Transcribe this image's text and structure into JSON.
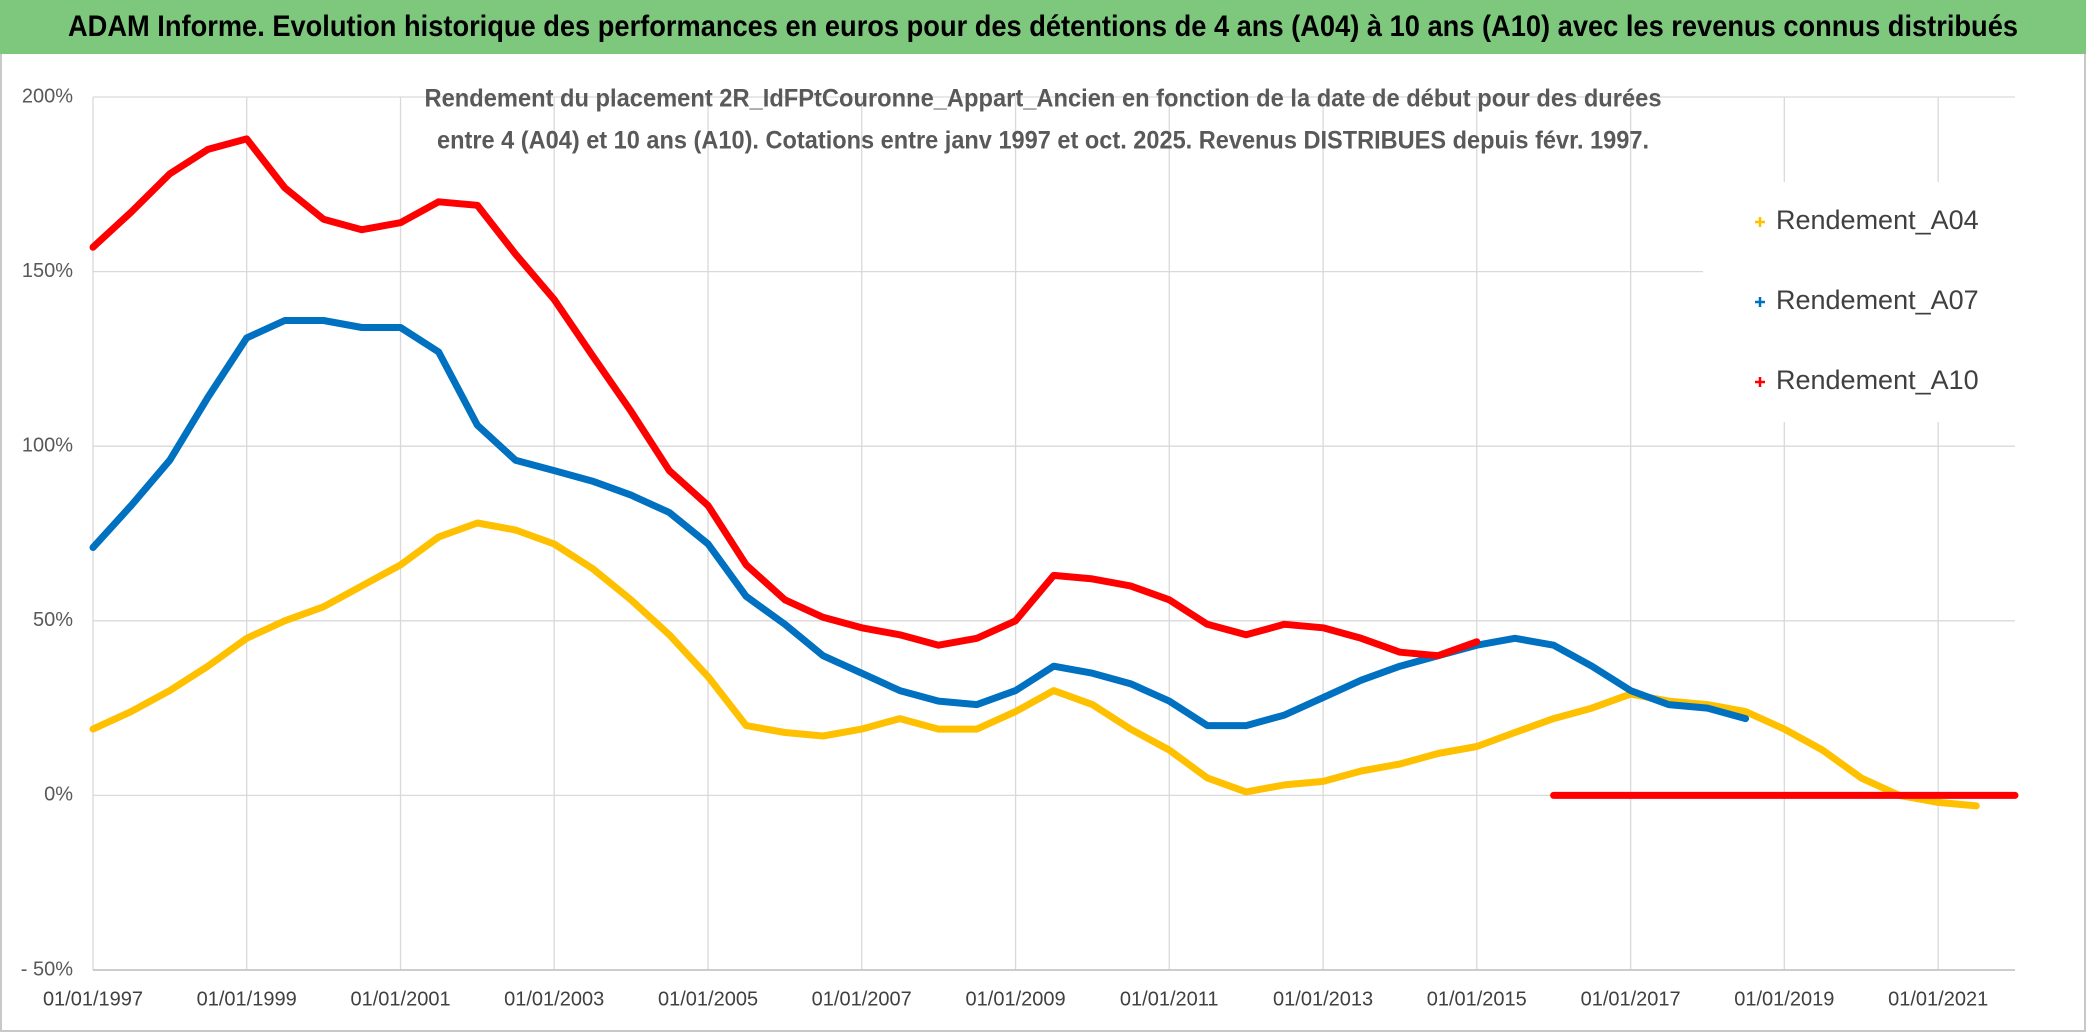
{
  "chart_data": {
    "type": "line",
    "title": "ADAM Informe. Evolution historique des performances en euros pour des détentions de 4 ans (A04) à 10 ans (A10) avec les revenus connus distribués",
    "subtitle": [
      "Rendement du placement 2R_IdFPtCouronne_Appart_Ancien en fonction de la date de début pour des durées",
      "entre 4 (A04) et 10 ans (A10). Cotations entre janv 1997 et oct. 2025. Revenus DISTRIBUES depuis févr. 1997."
    ],
    "x": [
      "1997-01-01",
      "1997-07-01",
      "1998-01-01",
      "1998-07-01",
      "1999-01-01",
      "1999-07-01",
      "2000-01-01",
      "2000-07-01",
      "2001-01-01",
      "2001-07-01",
      "2002-01-01",
      "2002-07-01",
      "2003-01-01",
      "2003-07-01",
      "2004-01-01",
      "2004-07-01",
      "2005-01-01",
      "2005-07-01",
      "2006-01-01",
      "2006-07-01",
      "2007-01-01",
      "2007-07-01",
      "2008-01-01",
      "2008-07-01",
      "2009-01-01",
      "2009-07-01",
      "2010-01-01",
      "2010-07-01",
      "2011-01-01",
      "2011-07-01",
      "2012-01-01",
      "2012-07-01",
      "2013-01-01",
      "2013-07-01",
      "2014-01-01",
      "2014-07-01",
      "2015-01-01",
      "2015-07-01",
      "2016-01-01",
      "2016-07-01",
      "2017-01-01",
      "2017-07-01",
      "2018-01-01",
      "2018-07-01",
      "2019-01-01",
      "2019-07-01",
      "2020-01-01",
      "2020-07-01",
      "2021-01-01",
      "2021-07-01",
      "2022-01-01"
    ],
    "series": [
      {
        "name": "Rendement_A04",
        "color": "#ffc000",
        "values": [
          19,
          24,
          30,
          37,
          45,
          50,
          54,
          60,
          66,
          74,
          78,
          76,
          72,
          65,
          56,
          46,
          34,
          20,
          18,
          17,
          19,
          22,
          19,
          19,
          24,
          30,
          26,
          19,
          13,
          5,
          1,
          3,
          4,
          7,
          9,
          12,
          14,
          18,
          22,
          25,
          29,
          27,
          26,
          24,
          19,
          13,
          5,
          0,
          -2,
          -3,
          null
        ]
      },
      {
        "name": "Rendement_A07",
        "color": "#0070c0",
        "values": [
          71,
          83,
          96,
          114,
          131,
          136,
          136,
          134,
          134,
          127,
          106,
          96,
          93,
          90,
          86,
          81,
          72,
          57,
          49,
          40,
          35,
          30,
          27,
          26,
          30,
          37,
          35,
          32,
          27,
          20,
          20,
          23,
          28,
          33,
          37,
          40,
          43,
          45,
          43,
          37,
          30,
          26,
          25,
          22,
          null,
          null,
          null,
          null,
          null,
          null,
          null
        ]
      },
      {
        "name": "Rendement_A10",
        "color": "#ff0000",
        "values": [
          157,
          167,
          178,
          185,
          188,
          174,
          165,
          162,
          164,
          170,
          169,
          155,
          142,
          126,
          110,
          93,
          83,
          66,
          56,
          51,
          48,
          46,
          43,
          45,
          50,
          63,
          62,
          60,
          56,
          49,
          46,
          49,
          48,
          45,
          41,
          40,
          44,
          null,
          0,
          0,
          0,
          0,
          0,
          0,
          0,
          0,
          0,
          0,
          0,
          0,
          0
        ]
      }
    ],
    "xlim": [
      "1997-01-01",
      "2022-01-01"
    ],
    "xticks": [
      {
        "value": "1997-01-01",
        "label": "01/01/1997"
      },
      {
        "value": "1999-01-01",
        "label": "01/01/1999"
      },
      {
        "value": "2001-01-01",
        "label": "01/01/2001"
      },
      {
        "value": "2003-01-01",
        "label": "01/01/2003"
      },
      {
        "value": "2005-01-01",
        "label": "01/01/2005"
      },
      {
        "value": "2007-01-01",
        "label": "01/01/2007"
      },
      {
        "value": "2009-01-01",
        "label": "01/01/2009"
      },
      {
        "value": "2011-01-01",
        "label": "01/01/2011"
      },
      {
        "value": "2013-01-01",
        "label": "01/01/2013"
      },
      {
        "value": "2015-01-01",
        "label": "01/01/2015"
      },
      {
        "value": "2017-01-01",
        "label": "01/01/2017"
      },
      {
        "value": "2019-01-01",
        "label": "01/01/2019"
      },
      {
        "value": "2021-01-01",
        "label": "01/01/2021"
      }
    ],
    "ylim": [
      -50,
      200
    ],
    "yticks": [
      {
        "value": -50,
        "label": "- 50%"
      },
      {
        "value": 0,
        "label": "0%"
      },
      {
        "value": 50,
        "label": "50%"
      },
      {
        "value": 100,
        "label": "100%"
      },
      {
        "value": 150,
        "label": "150%"
      },
      {
        "value": 200,
        "label": "200%"
      }
    ],
    "grid": true,
    "legend": "right"
  }
}
